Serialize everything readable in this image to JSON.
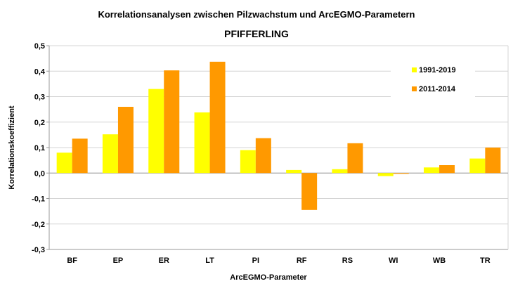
{
  "chart_data": {
    "type": "bar",
    "title": "Korrelationsanalysen zwischen Pilzwachstum und ArcEGMO-Parametern",
    "subtitle": "PFIFFERLING",
    "xlabel": "ArcEGMO-Parameter",
    "ylabel": "Korrelationskoeffizient",
    "ylim": [
      -0.3,
      0.5
    ],
    "yticks": [
      "-0,3",
      "-0,2",
      "-0,1",
      "0,0",
      "0,1",
      "0,2",
      "0,3",
      "0,4",
      "0,5"
    ],
    "yticks_values": [
      -0.3,
      -0.2,
      -0.1,
      0.0,
      0.1,
      0.2,
      0.3,
      0.4,
      0.5
    ],
    "grid": true,
    "legend_position": "top-right",
    "categories": [
      "BF",
      "EP",
      "ER",
      "LT",
      "PI",
      "RF",
      "RS",
      "WI",
      "WB",
      "TR"
    ],
    "series": [
      {
        "name": "1991-2019",
        "color": "#ffff00",
        "values": [
          0.08,
          0.152,
          0.33,
          0.238,
          0.09,
          0.012,
          0.015,
          -0.012,
          0.022,
          0.057
        ]
      },
      {
        "name": "2011-2014",
        "color": "#ff9900",
        "values": [
          0.135,
          0.26,
          0.403,
          0.437,
          0.137,
          -0.145,
          0.117,
          -0.003,
          0.031,
          0.1
        ]
      }
    ]
  }
}
